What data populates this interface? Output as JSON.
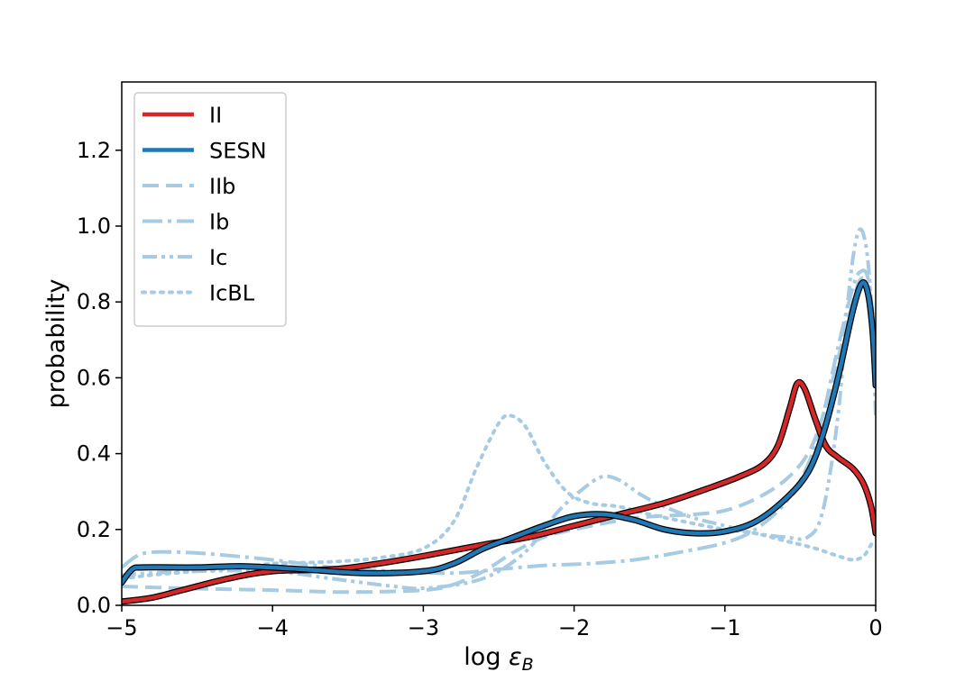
{
  "chart_data": {
    "type": "line",
    "xlabel": "log ε_B",
    "ylabel": "probability",
    "xlim": [
      -5,
      0
    ],
    "ylim": [
      0,
      1.38
    ],
    "xticks": [
      -5,
      -4,
      -3,
      -2,
      -1,
      0
    ],
    "yticks": [
      0.0,
      0.2,
      0.4,
      0.6,
      0.8,
      1.0,
      1.2
    ],
    "xtick_labels": [
      "−5",
      "−4",
      "−3",
      "−2",
      "−1",
      "0"
    ],
    "ytick_labels": [
      "0.0",
      "0.2",
      "0.4",
      "0.6",
      "0.8",
      "1.0",
      "1.2"
    ],
    "grid": false,
    "legend_position": "top-left",
    "series": [
      {
        "name": "II",
        "color": "#d62728",
        "style": "solid",
        "outline": true,
        "points": [
          [
            -5.0,
            0.01
          ],
          [
            -4.8,
            0.02
          ],
          [
            -4.6,
            0.04
          ],
          [
            -4.3,
            0.07
          ],
          [
            -4.0,
            0.09
          ],
          [
            -3.6,
            0.095
          ],
          [
            -3.3,
            0.11
          ],
          [
            -3.0,
            0.13
          ],
          [
            -2.6,
            0.16
          ],
          [
            -2.3,
            0.18
          ],
          [
            -2.0,
            0.21
          ],
          [
            -1.7,
            0.24
          ],
          [
            -1.4,
            0.27
          ],
          [
            -1.1,
            0.31
          ],
          [
            -0.9,
            0.34
          ],
          [
            -0.75,
            0.37
          ],
          [
            -0.65,
            0.42
          ],
          [
            -0.57,
            0.52
          ],
          [
            -0.52,
            0.585
          ],
          [
            -0.47,
            0.57
          ],
          [
            -0.4,
            0.49
          ],
          [
            -0.33,
            0.42
          ],
          [
            -0.25,
            0.39
          ],
          [
            -0.15,
            0.36
          ],
          [
            -0.08,
            0.32
          ],
          [
            -0.03,
            0.26
          ],
          [
            0.0,
            0.19
          ]
        ]
      },
      {
        "name": "SESN",
        "color": "#1f77b4",
        "style": "solid",
        "outline": true,
        "points": [
          [
            -5.0,
            0.06
          ],
          [
            -4.93,
            0.095
          ],
          [
            -4.85,
            0.1
          ],
          [
            -4.5,
            0.1
          ],
          [
            -4.2,
            0.103
          ],
          [
            -3.8,
            0.095
          ],
          [
            -3.4,
            0.085
          ],
          [
            -3.0,
            0.09
          ],
          [
            -2.8,
            0.11
          ],
          [
            -2.6,
            0.15
          ],
          [
            -2.4,
            0.18
          ],
          [
            -2.2,
            0.21
          ],
          [
            -2.0,
            0.235
          ],
          [
            -1.8,
            0.24
          ],
          [
            -1.6,
            0.225
          ],
          [
            -1.4,
            0.2
          ],
          [
            -1.2,
            0.19
          ],
          [
            -1.0,
            0.195
          ],
          [
            -0.8,
            0.22
          ],
          [
            -0.6,
            0.28
          ],
          [
            -0.45,
            0.35
          ],
          [
            -0.35,
            0.45
          ],
          [
            -0.25,
            0.6
          ],
          [
            -0.15,
            0.78
          ],
          [
            -0.09,
            0.85
          ],
          [
            -0.05,
            0.82
          ],
          [
            -0.02,
            0.72
          ],
          [
            0.0,
            0.58
          ]
        ]
      },
      {
        "name": "IIb",
        "color": "#a6cbe3",
        "style": "dashed",
        "points": [
          [
            -5.0,
            0.05
          ],
          [
            -4.6,
            0.045
          ],
          [
            -4.0,
            0.04
          ],
          [
            -3.5,
            0.035
          ],
          [
            -3.0,
            0.04
          ],
          [
            -2.8,
            0.055
          ],
          [
            -2.6,
            0.09
          ],
          [
            -2.4,
            0.14
          ],
          [
            -2.2,
            0.18
          ],
          [
            -2.0,
            0.2
          ],
          [
            -1.6,
            0.23
          ],
          [
            -1.2,
            0.24
          ],
          [
            -1.0,
            0.25
          ],
          [
            -0.8,
            0.28
          ],
          [
            -0.6,
            0.33
          ],
          [
            -0.45,
            0.4
          ],
          [
            -0.35,
            0.5
          ],
          [
            -0.25,
            0.65
          ],
          [
            -0.15,
            0.8
          ],
          [
            -0.1,
            0.86
          ],
          [
            -0.05,
            0.83
          ],
          [
            0.0,
            0.62
          ]
        ]
      },
      {
        "name": "Ib",
        "color": "#a6cbe3",
        "style": "dashdot",
        "points": [
          [
            -5.0,
            0.1
          ],
          [
            -4.9,
            0.13
          ],
          [
            -4.8,
            0.14
          ],
          [
            -4.6,
            0.14
          ],
          [
            -4.4,
            0.135
          ],
          [
            -4.0,
            0.12
          ],
          [
            -3.6,
            0.1
          ],
          [
            -3.2,
            0.09
          ],
          [
            -2.8,
            0.085
          ],
          [
            -2.5,
            0.095
          ],
          [
            -2.2,
            0.105
          ],
          [
            -1.9,
            0.11
          ],
          [
            -1.6,
            0.12
          ],
          [
            -1.3,
            0.14
          ],
          [
            -1.0,
            0.165
          ],
          [
            -0.8,
            0.2
          ],
          [
            -0.6,
            0.27
          ],
          [
            -0.45,
            0.37
          ],
          [
            -0.35,
            0.5
          ],
          [
            -0.25,
            0.68
          ],
          [
            -0.15,
            0.84
          ],
          [
            -0.1,
            0.88
          ],
          [
            -0.05,
            0.86
          ],
          [
            0.0,
            0.7
          ]
        ]
      },
      {
        "name": "Ic",
        "color": "#a6cbe3",
        "style": "dashdotdot",
        "points": [
          [
            -5.0,
            0.08
          ],
          [
            -4.8,
            0.085
          ],
          [
            -4.5,
            0.09
          ],
          [
            -4.0,
            0.09
          ],
          [
            -3.6,
            0.07
          ],
          [
            -3.2,
            0.05
          ],
          [
            -3.0,
            0.045
          ],
          [
            -2.7,
            0.06
          ],
          [
            -2.5,
            0.09
          ],
          [
            -2.3,
            0.15
          ],
          [
            -2.1,
            0.25
          ],
          [
            -1.9,
            0.32
          ],
          [
            -1.8,
            0.34
          ],
          [
            -1.7,
            0.33
          ],
          [
            -1.55,
            0.29
          ],
          [
            -1.4,
            0.26
          ],
          [
            -1.2,
            0.23
          ],
          [
            -1.0,
            0.21
          ],
          [
            -0.8,
            0.19
          ],
          [
            -0.6,
            0.18
          ],
          [
            -0.45,
            0.18
          ],
          [
            -0.35,
            0.25
          ],
          [
            -0.25,
            0.5
          ],
          [
            -0.18,
            0.82
          ],
          [
            -0.12,
            0.98
          ],
          [
            -0.07,
            0.96
          ],
          [
            -0.03,
            0.8
          ],
          [
            0.0,
            0.5
          ]
        ]
      },
      {
        "name": "IcBL",
        "color": "#a6cbe3",
        "style": "dotted",
        "points": [
          [
            -5.0,
            0.07
          ],
          [
            -4.8,
            0.08
          ],
          [
            -4.5,
            0.09
          ],
          [
            -4.2,
            0.1
          ],
          [
            -4.0,
            0.11
          ],
          [
            -3.6,
            0.115
          ],
          [
            -3.3,
            0.125
          ],
          [
            -3.0,
            0.15
          ],
          [
            -2.8,
            0.22
          ],
          [
            -2.65,
            0.36
          ],
          [
            -2.5,
            0.48
          ],
          [
            -2.42,
            0.5
          ],
          [
            -2.32,
            0.47
          ],
          [
            -2.2,
            0.38
          ],
          [
            -2.05,
            0.3
          ],
          [
            -1.9,
            0.27
          ],
          [
            -1.7,
            0.26
          ],
          [
            -1.5,
            0.24
          ],
          [
            -1.2,
            0.215
          ],
          [
            -1.0,
            0.2
          ],
          [
            -0.8,
            0.19
          ],
          [
            -0.6,
            0.17
          ],
          [
            -0.4,
            0.15
          ],
          [
            -0.25,
            0.13
          ],
          [
            -0.15,
            0.12
          ],
          [
            -0.08,
            0.13
          ],
          [
            -0.03,
            0.16
          ],
          [
            0.0,
            0.17
          ]
        ]
      }
    ]
  }
}
